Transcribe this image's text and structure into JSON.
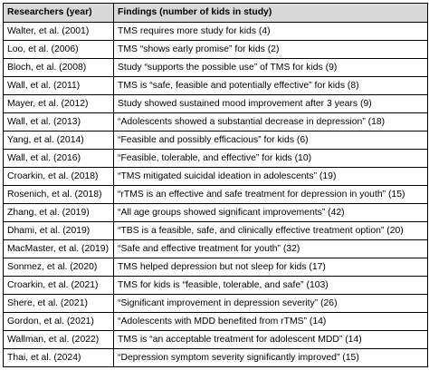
{
  "table": {
    "headers": [
      "Researchers (year)",
      "Findings (number of kids in study)"
    ],
    "rows": [
      [
        "Walter, et al. (2001)",
        "TMS requires more study for kids (4)"
      ],
      [
        "Loo, et al. (2006)",
        "TMS “shows early promise” for kids (2)"
      ],
      [
        "Bloch, et al. (2008)",
        "Study “supports the possible use” of TMS for kids (9)"
      ],
      [
        "Wall, et al. (2011)",
        "TMS is “safe, feasible and potentially effective” for kids (8)"
      ],
      [
        "Mayer, et al. (2012)",
        "Study showed sustained mood improvement after 3 years (9)"
      ],
      [
        "Wall, et al. (2013)",
        "“Adolescents showed a substantial decrease in depression” (18)"
      ],
      [
        "Yang, et al. (2014)",
        "“Feasible and possibly efficacious” for kids (6)"
      ],
      [
        "Wall, et al. (2016)",
        "“Feasible, tolerable, and effective” for kids (10)"
      ],
      [
        "Croarkin, et al. (2018)",
        "“TMS mitigated suicidal ideation in adolescents” (19)"
      ],
      [
        "Rosenich, et al. (2018)",
        "“rTMS is an effective and safe treatment for depression in youth” (15)"
      ],
      [
        "Zhang, et al. (2019)",
        "“All age groups showed significant improvements” (42)"
      ],
      [
        "Dhami, et al. (2019)",
        "“TBS is a feasible, safe, and clinically effective treatment option” (20)"
      ],
      [
        "MacMaster, et al. (2019)",
        "“Safe and effective treatment for youth” (32)"
      ],
      [
        "Sonmez, et al. (2020)",
        "TMS helped depression but not sleep for kids (17)"
      ],
      [
        "Croarkin, et al. (2021)",
        "TMS for kids is “feasible, tolerable, and safe” (103)"
      ],
      [
        "Shere, et al. (2021)",
        "“Significant improvement in depression severity” (26)"
      ],
      [
        "Gordon, et al. (2021)",
        "“Adolescents with MDD benefited from rTMS” (14)"
      ],
      [
        "Wallman, et al. (2022)",
        "TMS is “an acceptable treatment for adolescent MDD” (14)"
      ],
      [
        "Thai, et al. (2024)",
        "“Depression symptom severity significantly improved” (15)"
      ]
    ]
  },
  "colors": {
    "header_bg": "#d9d9d9",
    "border": "#000000",
    "text": "#000000"
  }
}
